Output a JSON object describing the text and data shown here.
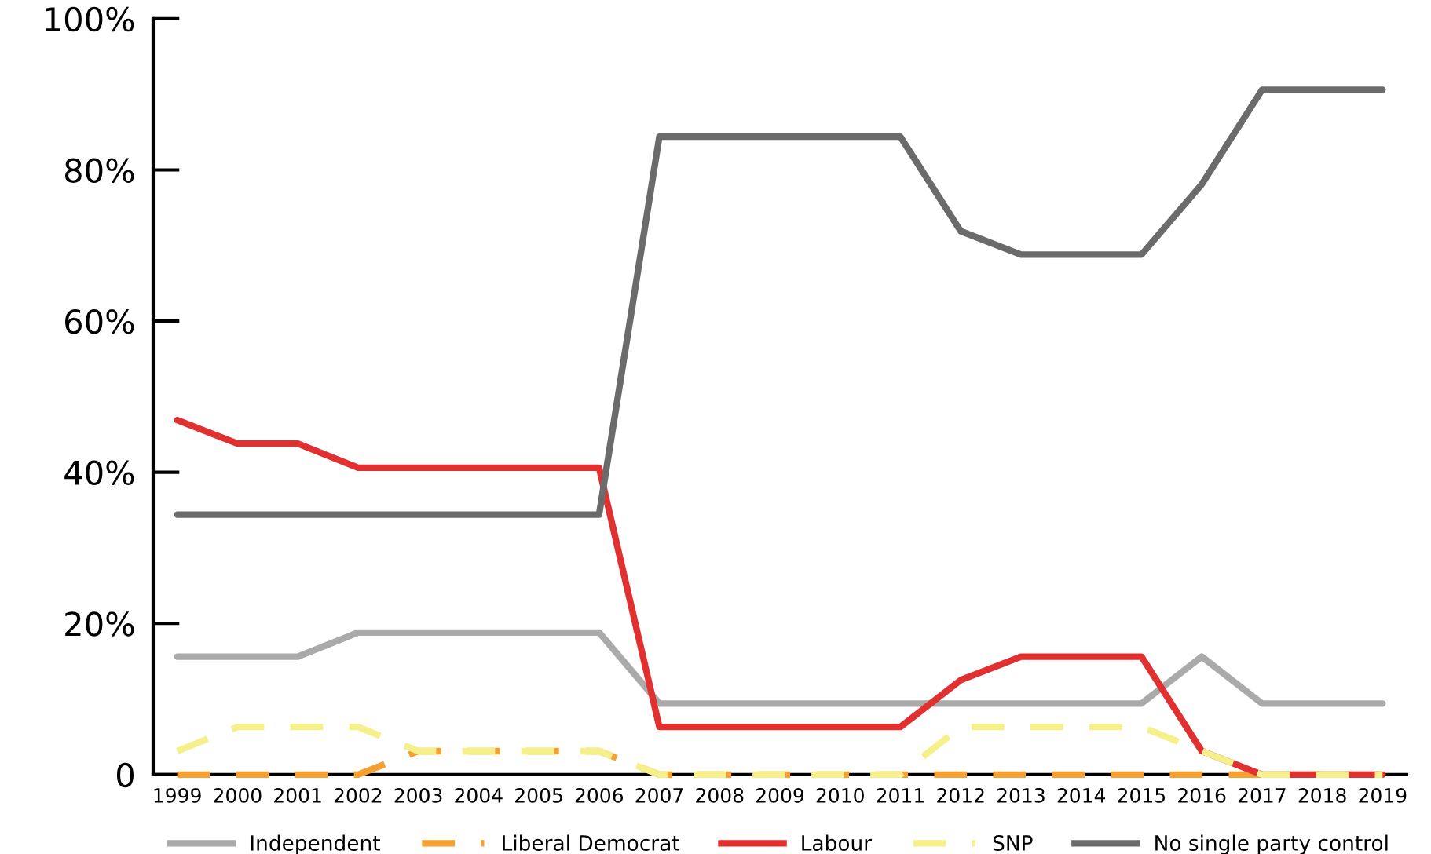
{
  "chart_data": {
    "type": "line",
    "categories": [
      "1999",
      "2000",
      "2001",
      "2002",
      "2003",
      "2004",
      "2005",
      "2006",
      "2007",
      "2008",
      "2009",
      "2010",
      "2011",
      "2012",
      "2013",
      "2014",
      "2015",
      "2016",
      "2017",
      "2018",
      "2019"
    ],
    "series": [
      {
        "name": "Independent",
        "color": "#aaaaaa",
        "line_style": "solid",
        "values": [
          15.6,
          15.6,
          15.6,
          18.8,
          18.8,
          18.8,
          18.8,
          18.8,
          9.4,
          9.4,
          9.4,
          9.4,
          9.4,
          9.4,
          9.4,
          9.4,
          9.4,
          15.6,
          9.4,
          9.4,
          9.4
        ]
      },
      {
        "name": "Liberal Democrat",
        "color": "#f5a030",
        "line_style": "dashed",
        "values": [
          0,
          0,
          0,
          0,
          3.1,
          3.1,
          3.1,
          3.1,
          0,
          0,
          0,
          0,
          0,
          0,
          0,
          0,
          0,
          0,
          0,
          0,
          0
        ]
      },
      {
        "name": "Labour",
        "color": "#e03030",
        "line_style": "solid",
        "values": [
          46.9,
          43.8,
          43.8,
          40.6,
          40.6,
          40.6,
          40.6,
          40.6,
          6.3,
          6.3,
          6.3,
          6.3,
          6.3,
          12.5,
          15.6,
          15.6,
          15.6,
          3.1,
          0,
          0,
          0
        ]
      },
      {
        "name": "SNP",
        "color": "#f5f08a",
        "line_style": "dashed",
        "values": [
          3.1,
          6.3,
          6.3,
          6.3,
          3.1,
          3.1,
          3.1,
          3.1,
          0,
          0,
          0,
          0,
          0,
          6.3,
          6.3,
          6.3,
          6.3,
          3.1,
          0,
          0,
          0
        ]
      },
      {
        "name": "No single party control",
        "color": "#6b6b6b",
        "line_style": "solid",
        "values": [
          34.4,
          34.4,
          34.4,
          34.4,
          34.4,
          34.4,
          34.4,
          34.4,
          84.4,
          84.4,
          84.4,
          84.4,
          84.4,
          71.9,
          68.8,
          68.8,
          68.8,
          78.1,
          90.6,
          90.6,
          90.6
        ]
      }
    ],
    "ylim": [
      0,
      100
    ],
    "yticks": [
      {
        "value": 0,
        "label": "0"
      },
      {
        "value": 20,
        "label": "20%"
      },
      {
        "value": 40,
        "label": "40%"
      },
      {
        "value": 60,
        "label": "60%"
      },
      {
        "value": 80,
        "label": "80%"
      },
      {
        "value": 100,
        "label": "100%"
      }
    ],
    "grid": false,
    "legend": "bottom",
    "marker": "none"
  }
}
